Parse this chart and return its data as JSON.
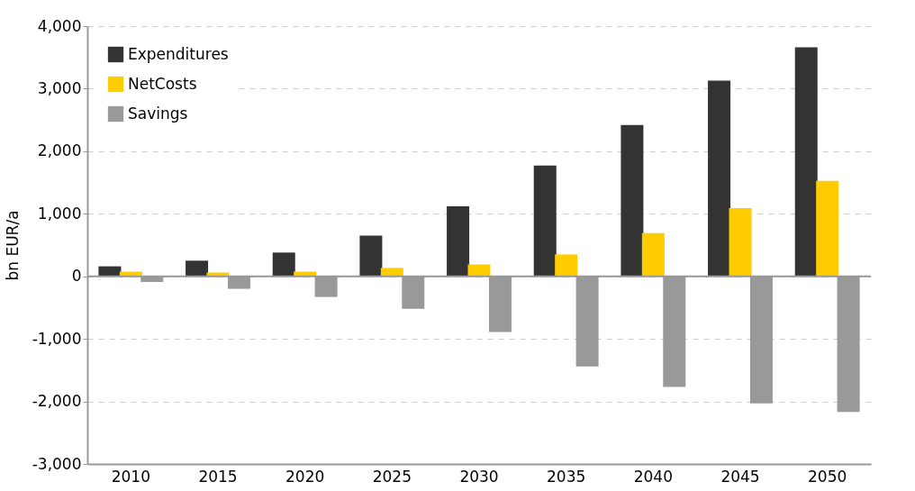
{
  "chart_data": {
    "type": "bar",
    "ylabel": "bn EUR/a",
    "categories": [
      "2010",
      "2015",
      "2020",
      "2025",
      "2030",
      "2035",
      "2040",
      "2045",
      "2050"
    ],
    "series": [
      {
        "name": "Expenditures",
        "color": "#333333",
        "values": [
          160,
          250,
          380,
          650,
          1120,
          1770,
          2420,
          3130,
          3660
        ]
      },
      {
        "name": "NetCosts",
        "color": "#ffcc00",
        "values": [
          75,
          60,
          75,
          135,
          190,
          350,
          690,
          1090,
          1525
        ]
      },
      {
        "name": "Savings",
        "color": "#999999",
        "values": [
          -90,
          -200,
          -330,
          -520,
          -890,
          -1440,
          -1770,
          -2030,
          -2170
        ]
      }
    ],
    "ylim": [
      -3000,
      4000
    ],
    "yticks": [
      {
        "value": -3000,
        "label": "-3,000"
      },
      {
        "value": -2000,
        "label": "-2,000"
      },
      {
        "value": -1000,
        "label": "-1,000"
      },
      0,
      {
        "value": 1000,
        "label": "1,000"
      },
      {
        "value": 2000,
        "label": "2,000"
      },
      {
        "value": 3000,
        "label": "3,000"
      },
      {
        "value": 4000,
        "label": "4,000"
      }
    ],
    "grid": "y",
    "legend": "top left"
  }
}
